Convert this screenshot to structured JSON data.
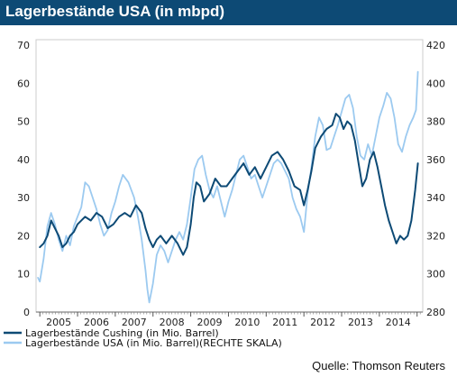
{
  "chart_data": {
    "type": "line",
    "title": "Lagerbestände USA (in mbpd)",
    "source": "Quelle: Thomson Reuters",
    "x_labels": [
      "2005",
      "2006",
      "2007",
      "2008",
      "2009",
      "2010",
      "2011",
      "2012",
      "2013",
      "2014"
    ],
    "xlim": [
      2004.9,
      2015.15
    ],
    "y_left": {
      "ticks": [
        "0",
        "10",
        "20",
        "30",
        "40",
        "50",
        "60",
        "70"
      ],
      "ylim": [
        0,
        70
      ]
    },
    "y_right": {
      "ticks": [
        "280",
        "300",
        "320",
        "340",
        "360",
        "380",
        "400",
        "420"
      ],
      "ylim": [
        280,
        420
      ]
    },
    "grid": false,
    "legend_position": "bottom-left",
    "colors": {
      "cushing": "#0d4a75",
      "usa": "#9ccaf0",
      "title_bg": "#0d4a75"
    },
    "series": [
      {
        "name": "Lagerbestände Cushing (in Mio. Barrel)",
        "axis": "left",
        "color": "#0d4a75",
        "points": [
          [
            2005.0,
            17
          ],
          [
            2005.1,
            18
          ],
          [
            2005.2,
            20
          ],
          [
            2005.3,
            24
          ],
          [
            2005.4,
            22
          ],
          [
            2005.5,
            20
          ],
          [
            2005.6,
            17
          ],
          [
            2005.7,
            18
          ],
          [
            2005.8,
            20
          ],
          [
            2005.9,
            21
          ],
          [
            2006.0,
            23
          ],
          [
            2006.2,
            25
          ],
          [
            2006.35,
            24
          ],
          [
            2006.5,
            26
          ],
          [
            2006.65,
            25
          ],
          [
            2006.8,
            22
          ],
          [
            2006.95,
            23
          ],
          [
            2007.1,
            25
          ],
          [
            2007.25,
            26
          ],
          [
            2007.4,
            25
          ],
          [
            2007.55,
            28
          ],
          [
            2007.7,
            26
          ],
          [
            2007.8,
            22
          ],
          [
            2007.9,
            19
          ],
          [
            2008.0,
            17
          ],
          [
            2008.1,
            19
          ],
          [
            2008.2,
            20
          ],
          [
            2008.35,
            18
          ],
          [
            2008.5,
            20
          ],
          [
            2008.65,
            18
          ],
          [
            2008.8,
            15
          ],
          [
            2008.9,
            17
          ],
          [
            2009.0,
            23
          ],
          [
            2009.08,
            30
          ],
          [
            2009.15,
            34
          ],
          [
            2009.25,
            33
          ],
          [
            2009.35,
            29
          ],
          [
            2009.5,
            31
          ],
          [
            2009.65,
            35
          ],
          [
            2009.8,
            33
          ],
          [
            2009.95,
            33
          ],
          [
            2010.1,
            35
          ],
          [
            2010.25,
            37
          ],
          [
            2010.4,
            39
          ],
          [
            2010.55,
            36
          ],
          [
            2010.7,
            38
          ],
          [
            2010.85,
            35
          ],
          [
            2011.0,
            38
          ],
          [
            2011.15,
            41
          ],
          [
            2011.3,
            42
          ],
          [
            2011.45,
            40
          ],
          [
            2011.6,
            37
          ],
          [
            2011.75,
            33
          ],
          [
            2011.9,
            32
          ],
          [
            2012.0,
            28
          ],
          [
            2012.1,
            32
          ],
          [
            2012.2,
            37
          ],
          [
            2012.3,
            43
          ],
          [
            2012.45,
            46
          ],
          [
            2012.6,
            48
          ],
          [
            2012.75,
            49
          ],
          [
            2012.85,
            52
          ],
          [
            2012.95,
            51
          ],
          [
            2013.05,
            48
          ],
          [
            2013.15,
            50
          ],
          [
            2013.25,
            49
          ],
          [
            2013.35,
            45
          ],
          [
            2013.45,
            39
          ],
          [
            2013.55,
            33
          ],
          [
            2013.65,
            35
          ],
          [
            2013.75,
            40
          ],
          [
            2013.85,
            42
          ],
          [
            2013.95,
            38
          ],
          [
            2014.05,
            33
          ],
          [
            2014.15,
            28
          ],
          [
            2014.25,
            24
          ],
          [
            2014.35,
            21
          ],
          [
            2014.45,
            18
          ],
          [
            2014.55,
            20
          ],
          [
            2014.65,
            19
          ],
          [
            2014.75,
            20
          ],
          [
            2014.85,
            24
          ],
          [
            2014.95,
            32
          ],
          [
            2015.02,
            39
          ]
        ]
      },
      {
        "name": "Lagerbestände USA (in Mio. Barrel)(RECHTE SKALA)",
        "axis": "right",
        "color": "#9ccaf0",
        "points": [
          [
            2004.95,
            298
          ],
          [
            2005.0,
            296
          ],
          [
            2005.1,
            308
          ],
          [
            2005.2,
            325
          ],
          [
            2005.3,
            332
          ],
          [
            2005.4,
            326
          ],
          [
            2005.5,
            318
          ],
          [
            2005.6,
            312
          ],
          [
            2005.7,
            320
          ],
          [
            2005.8,
            315
          ],
          [
            2005.9,
            325
          ],
          [
            2006.0,
            330
          ],
          [
            2006.1,
            335
          ],
          [
            2006.2,
            348
          ],
          [
            2006.3,
            346
          ],
          [
            2006.4,
            340
          ],
          [
            2006.5,
            334
          ],
          [
            2006.6,
            326
          ],
          [
            2006.7,
            320
          ],
          [
            2006.8,
            323
          ],
          [
            2006.9,
            332
          ],
          [
            2007.0,
            338
          ],
          [
            2007.1,
            346
          ],
          [
            2007.2,
            352
          ],
          [
            2007.35,
            348
          ],
          [
            2007.5,
            340
          ],
          [
            2007.6,
            330
          ],
          [
            2007.7,
            318
          ],
          [
            2007.8,
            302
          ],
          [
            2007.85,
            292
          ],
          [
            2007.9,
            285
          ],
          [
            2008.0,
            295
          ],
          [
            2008.1,
            310
          ],
          [
            2008.2,
            315
          ],
          [
            2008.3,
            312
          ],
          [
            2008.4,
            306
          ],
          [
            2008.5,
            312
          ],
          [
            2008.6,
            318
          ],
          [
            2008.7,
            322
          ],
          [
            2008.8,
            318
          ],
          [
            2008.9,
            326
          ],
          [
            2009.0,
            340
          ],
          [
            2009.1,
            355
          ],
          [
            2009.2,
            360
          ],
          [
            2009.3,
            362
          ],
          [
            2009.4,
            352
          ],
          [
            2009.5,
            344
          ],
          [
            2009.6,
            340
          ],
          [
            2009.7,
            346
          ],
          [
            2009.8,
            338
          ],
          [
            2009.9,
            330
          ],
          [
            2010.0,
            338
          ],
          [
            2010.1,
            344
          ],
          [
            2010.2,
            352
          ],
          [
            2010.3,
            360
          ],
          [
            2010.4,
            362
          ],
          [
            2010.5,
            356
          ],
          [
            2010.6,
            350
          ],
          [
            2010.7,
            352
          ],
          [
            2010.8,
            346
          ],
          [
            2010.9,
            340
          ],
          [
            2011.0,
            346
          ],
          [
            2011.1,
            352
          ],
          [
            2011.2,
            358
          ],
          [
            2011.3,
            360
          ],
          [
            2011.4,
            358
          ],
          [
            2011.5,
            354
          ],
          [
            2011.6,
            350
          ],
          [
            2011.7,
            340
          ],
          [
            2011.8,
            334
          ],
          [
            2011.9,
            330
          ],
          [
            2012.0,
            322
          ],
          [
            2012.1,
            342
          ],
          [
            2012.2,
            356
          ],
          [
            2012.3,
            372
          ],
          [
            2012.4,
            382
          ],
          [
            2012.5,
            378
          ],
          [
            2012.6,
            365
          ],
          [
            2012.7,
            366
          ],
          [
            2012.8,
            372
          ],
          [
            2012.9,
            378
          ],
          [
            2013.0,
            385
          ],
          [
            2013.1,
            392
          ],
          [
            2013.2,
            394
          ],
          [
            2013.3,
            387
          ],
          [
            2013.4,
            372
          ],
          [
            2013.5,
            362
          ],
          [
            2013.6,
            360
          ],
          [
            2013.7,
            368
          ],
          [
            2013.8,
            362
          ],
          [
            2013.9,
            372
          ],
          [
            2014.0,
            382
          ],
          [
            2014.1,
            388
          ],
          [
            2014.2,
            395
          ],
          [
            2014.3,
            392
          ],
          [
            2014.4,
            382
          ],
          [
            2014.5,
            368
          ],
          [
            2014.6,
            364
          ],
          [
            2014.7,
            372
          ],
          [
            2014.8,
            378
          ],
          [
            2014.9,
            382
          ],
          [
            2014.97,
            386
          ],
          [
            2015.02,
            406
          ]
        ]
      }
    ]
  }
}
